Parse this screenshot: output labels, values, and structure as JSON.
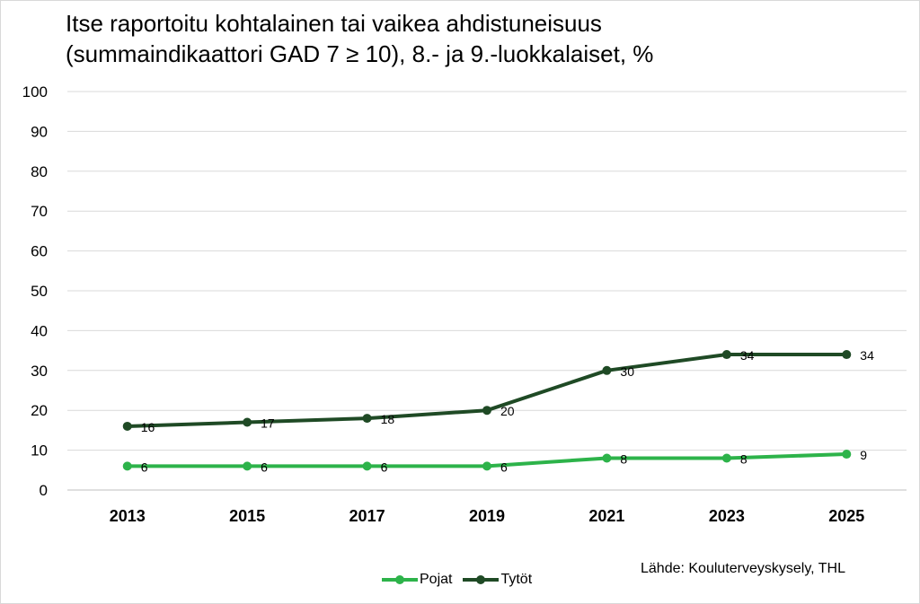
{
  "chart_data": {
    "type": "line",
    "title": "Itse raportoitu kohtalainen tai vaikea ahdistuneisuus",
    "subtitle": "(summaindikaattori GAD 7 ≥ 10), 8.- ja 9.-luokkalaiset, %",
    "xlabel": "",
    "ylabel": "",
    "categories": [
      "2013",
      "2015",
      "2017",
      "2019",
      "2021",
      "2023",
      "2025"
    ],
    "yticks": [
      "0",
      "10",
      "20",
      "30",
      "40",
      "50",
      "60",
      "70",
      "80",
      "90",
      "100"
    ],
    "ylim": [
      0,
      100
    ],
    "grid": true,
    "legend_position": "bottom",
    "series": [
      {
        "name": "Pojat",
        "values": [
          6,
          6,
          6,
          6,
          8,
          8,
          9
        ],
        "color": "#2db34a"
      },
      {
        "name": "Tytöt",
        "values": [
          16,
          17,
          18,
          20,
          30,
          34,
          34
        ],
        "color": "#1f4a25"
      }
    ],
    "source": "Lähde: Kouluterveyskysely, THL"
  }
}
